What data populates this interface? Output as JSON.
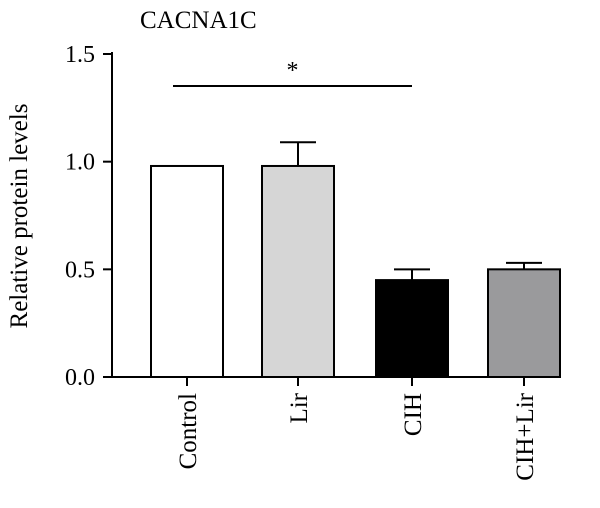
{
  "chart_data": {
    "type": "bar",
    "title": "CACNA1C",
    "ylabel": "Relative protein levels",
    "xlabel": "",
    "ylim": [
      0,
      1.5
    ],
    "yticks": [
      0.0,
      0.5,
      1.0,
      1.5
    ],
    "ytick_labels": [
      "0.0",
      "0.5",
      "1.0",
      "1.5"
    ],
    "categories": [
      "Control",
      "Lir",
      "CIH",
      "CIH+Lir"
    ],
    "values": [
      0.98,
      0.98,
      0.45,
      0.5
    ],
    "error_upper": [
      0.0,
      0.11,
      0.05,
      0.03
    ],
    "bar_colors": [
      "#ffffff",
      "#d6d6d6",
      "#000000",
      "#9a9a9c"
    ],
    "grid": false,
    "annotations": [
      {
        "type": "significance",
        "from": "Control",
        "to": "CIH",
        "label": "*"
      }
    ]
  }
}
